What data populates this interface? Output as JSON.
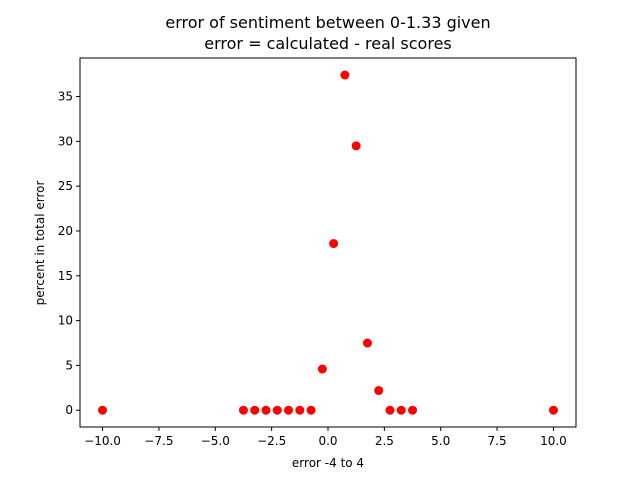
{
  "chart_data": {
    "type": "scatter",
    "title": "error of sentiment between 0-1.33 given",
    "subtitle": "error = calculated - real scores",
    "xlabel": "error -4 to 4",
    "ylabel": "percent in total error",
    "xlim": [
      -11,
      11
    ],
    "ylim": [
      -1.87,
      39.3
    ],
    "xticks": [
      -10.0,
      -7.5,
      -5.0,
      -2.5,
      0.0,
      2.5,
      5.0,
      7.5,
      10.0
    ],
    "xtick_labels": [
      "−10.0",
      "−7.5",
      "−5.0",
      "−2.5",
      "0.0",
      "2.5",
      "5.0",
      "7.5",
      "10.0"
    ],
    "yticks": [
      0,
      5,
      10,
      15,
      20,
      25,
      30,
      35
    ],
    "ytick_labels": [
      "0",
      "5",
      "10",
      "15",
      "20",
      "25",
      "30",
      "35"
    ],
    "grid": false,
    "marker_color": "#ff0000",
    "points": [
      {
        "x": -10.0,
        "y": 0.0
      },
      {
        "x": -3.75,
        "y": 0.0
      },
      {
        "x": -3.25,
        "y": 0.0
      },
      {
        "x": -2.75,
        "y": 0.0
      },
      {
        "x": -2.25,
        "y": 0.0
      },
      {
        "x": -1.75,
        "y": 0.0
      },
      {
        "x": -1.25,
        "y": 0.0
      },
      {
        "x": -0.75,
        "y": 0.0
      },
      {
        "x": -0.25,
        "y": 4.6
      },
      {
        "x": 0.25,
        "y": 18.6
      },
      {
        "x": 0.75,
        "y": 37.4
      },
      {
        "x": 1.25,
        "y": 29.5
      },
      {
        "x": 1.75,
        "y": 7.5
      },
      {
        "x": 2.25,
        "y": 2.2
      },
      {
        "x": 2.75,
        "y": 0.0
      },
      {
        "x": 3.25,
        "y": 0.0
      },
      {
        "x": 3.75,
        "y": 0.0
      },
      {
        "x": 10.0,
        "y": 0.0
      }
    ]
  }
}
